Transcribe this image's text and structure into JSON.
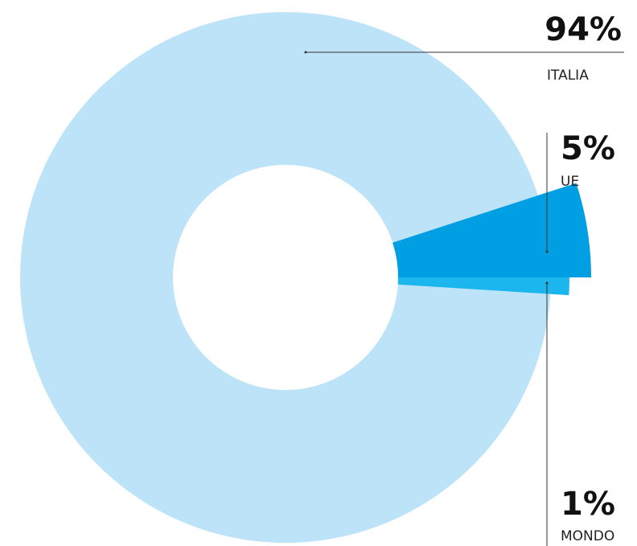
{
  "chart_data": {
    "type": "donut",
    "categories": [
      "ITALIA",
      "UE",
      "MONDO"
    ],
    "values": [
      94,
      5,
      1
    ],
    "value_labels": [
      "94%",
      "5%",
      "1%"
    ],
    "colors": [
      "#bde3f8",
      "#009fe3",
      "#1cb6ee"
    ]
  }
}
